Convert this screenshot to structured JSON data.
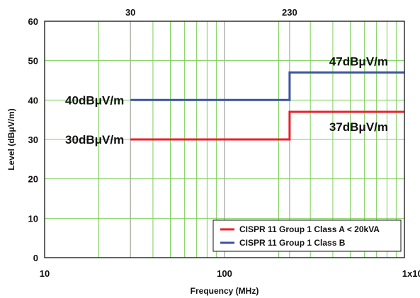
{
  "chart_data": {
    "type": "line",
    "xlabel": "Frequency (MHz)",
    "ylabel": "Level (dBμV/m)",
    "x_scale": "log",
    "xlim": [
      10,
      1000
    ],
    "ylim": [
      0,
      60
    ],
    "grid": true,
    "x_ticks": [
      {
        "value": 10,
        "label": "10"
      },
      {
        "value": 100,
        "label": "100"
      },
      {
        "value": 1000,
        "label": "1x10",
        "sup": "3"
      }
    ],
    "y_ticks": [
      0,
      10,
      20,
      30,
      40,
      50,
      60
    ],
    "top_ticks": [
      {
        "value": 30,
        "label": "30"
      },
      {
        "value": 230,
        "label": "230"
      }
    ],
    "series": [
      {
        "name": "CISPR 11 Group 1 Class A < 20kVA",
        "color": "#e8212b",
        "points": [
          [
            30,
            30
          ],
          [
            230,
            30
          ],
          [
            230,
            37
          ],
          [
            1000,
            37
          ]
        ]
      },
      {
        "name": "CISPR 11 Group 1 Class B",
        "color": "#3a54a4",
        "points": [
          [
            30,
            40
          ],
          [
            230,
            40
          ],
          [
            230,
            47
          ],
          [
            1000,
            47
          ]
        ]
      }
    ],
    "annotations": [
      {
        "text": "40dBμV/m",
        "x": 30,
        "y": 40,
        "anchor": "end"
      },
      {
        "text": "30dBμV/m",
        "x": 30,
        "y": 30,
        "anchor": "end"
      },
      {
        "text": "47dBμV/m",
        "x": 1000,
        "y": 47,
        "anchor": "end",
        "pos": "above"
      },
      {
        "text": "37dBμV/m",
        "x": 1000,
        "y": 37,
        "anchor": "end",
        "pos": "below"
      }
    ],
    "legend_position": "bottom-right",
    "grid_color": "#7ccf5a",
    "marker_line_color": "#aaaaaa"
  }
}
